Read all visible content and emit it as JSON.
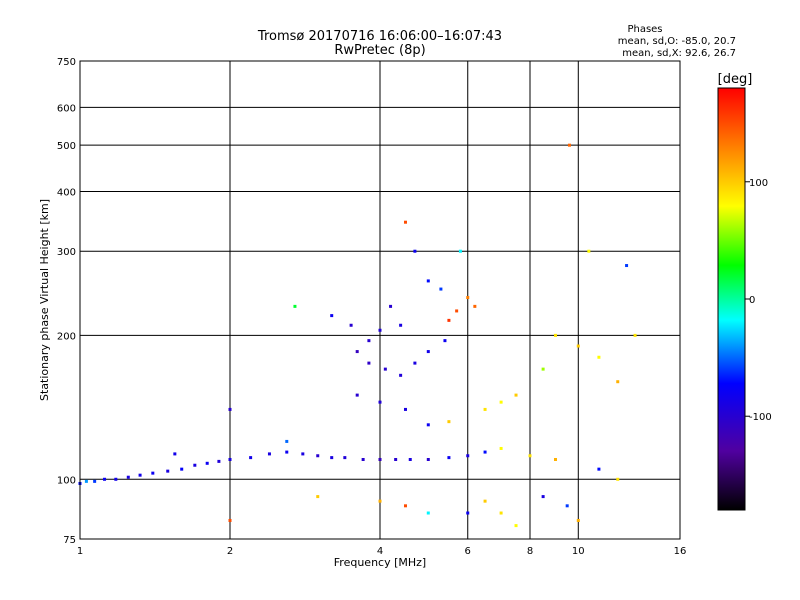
{
  "chart_data": {
    "type": "scatter",
    "title": "Tromsø 20170716 16:06:00–16:07:43",
    "subtitle": "RwPretec (8p)",
    "xlabel": "Frequency [MHz]",
    "ylabel": "Stationary phase Virtual Height [km]",
    "x_scale": "log",
    "y_scale": "log",
    "xlim": [
      1,
      16
    ],
    "ylim": [
      75,
      750
    ],
    "x_ticks": [
      "1",
      "2",
      "4",
      "6",
      "8",
      "10",
      "16"
    ],
    "y_ticks": [
      "75",
      "100",
      "200",
      "300",
      "400",
      "500",
      "600",
      "750"
    ],
    "grid": true,
    "phase_box": {
      "title": "Phases",
      "line_o": "mean, sd,O: -85.0, 20.7",
      "line_x": "mean, sd,X: 92.6, 26.7"
    },
    "colorbar": {
      "label": "[deg]",
      "ticks": [
        "100",
        "0",
        "-100"
      ],
      "range": [
        -180,
        180
      ],
      "colormap": "rainbow"
    },
    "series": [
      {
        "values": [
          {
            "x": 1.0,
            "y": 98,
            "phase": -70
          },
          {
            "x": 1.03,
            "y": 99,
            "phase": -40
          },
          {
            "x": 1.07,
            "y": 99,
            "phase": -60
          },
          {
            "x": 1.12,
            "y": 100,
            "phase": -80
          },
          {
            "x": 1.18,
            "y": 100,
            "phase": -85
          },
          {
            "x": 1.25,
            "y": 101,
            "phase": -90
          },
          {
            "x": 1.32,
            "y": 102,
            "phase": -85
          },
          {
            "x": 1.4,
            "y": 103,
            "phase": -80
          },
          {
            "x": 1.5,
            "y": 104,
            "phase": -90
          },
          {
            "x": 1.55,
            "y": 113,
            "phase": -85
          },
          {
            "x": 1.6,
            "y": 105,
            "phase": -75
          },
          {
            "x": 1.7,
            "y": 107,
            "phase": -90
          },
          {
            "x": 1.8,
            "y": 108,
            "phase": -80
          },
          {
            "x": 1.9,
            "y": 109,
            "phase": -95
          },
          {
            "x": 2.0,
            "y": 110,
            "phase": -90
          },
          {
            "x": 2.0,
            "y": 140,
            "phase": -100
          },
          {
            "x": 2.0,
            "y": 82,
            "phase": 150
          },
          {
            "x": 2.2,
            "y": 111,
            "phase": -85
          },
          {
            "x": 2.4,
            "y": 113,
            "phase": -90
          },
          {
            "x": 2.6,
            "y": 114,
            "phase": -80
          },
          {
            "x": 2.6,
            "y": 120,
            "phase": -50
          },
          {
            "x": 2.8,
            "y": 113,
            "phase": -90
          },
          {
            "x": 3.0,
            "y": 112,
            "phase": -100
          },
          {
            "x": 3.2,
            "y": 111,
            "phase": -90
          },
          {
            "x": 3.4,
            "y": 111,
            "phase": -95
          },
          {
            "x": 3.7,
            "y": 110,
            "phase": -100
          },
          {
            "x": 4.0,
            "y": 110,
            "phase": -110
          },
          {
            "x": 4.3,
            "y": 110,
            "phase": -100
          },
          {
            "x": 4.6,
            "y": 110,
            "phase": -90
          },
          {
            "x": 5.0,
            "y": 110,
            "phase": -100
          },
          {
            "x": 5.5,
            "y": 111,
            "phase": -80
          },
          {
            "x": 6.0,
            "y": 112,
            "phase": -90
          },
          {
            "x": 6.5,
            "y": 114,
            "phase": -70
          },
          {
            "x": 7.0,
            "y": 116,
            "phase": 80
          },
          {
            "x": 8.0,
            "y": 112,
            "phase": 90
          },
          {
            "x": 9.0,
            "y": 110,
            "phase": 110
          },
          {
            "x": 9.6,
            "y": 500,
            "phase": 140
          },
          {
            "x": 2.7,
            "y": 230,
            "phase": 20
          },
          {
            "x": 3.2,
            "y": 220,
            "phase": -80
          },
          {
            "x": 3.5,
            "y": 210,
            "phase": -100
          },
          {
            "x": 3.6,
            "y": 185,
            "phase": -110
          },
          {
            "x": 3.8,
            "y": 195,
            "phase": -100
          },
          {
            "x": 4.0,
            "y": 205,
            "phase": -95
          },
          {
            "x": 4.2,
            "y": 230,
            "phase": -100
          },
          {
            "x": 4.4,
            "y": 210,
            "phase": -90
          },
          {
            "x": 4.5,
            "y": 345,
            "phase": 150
          },
          {
            "x": 4.7,
            "y": 300,
            "phase": -80
          },
          {
            "x": 5.0,
            "y": 260,
            "phase": -70
          },
          {
            "x": 5.3,
            "y": 250,
            "phase": -60
          },
          {
            "x": 5.5,
            "y": 215,
            "phase": 160
          },
          {
            "x": 5.7,
            "y": 225,
            "phase": 150
          },
          {
            "x": 5.8,
            "y": 300,
            "phase": -20
          },
          {
            "x": 6.0,
            "y": 240,
            "phase": 130
          },
          {
            "x": 6.2,
            "y": 230,
            "phase": 140
          },
          {
            "x": 3.8,
            "y": 175,
            "phase": -105
          },
          {
            "x": 4.1,
            "y": 170,
            "phase": -100
          },
          {
            "x": 4.4,
            "y": 165,
            "phase": -95
          },
          {
            "x": 4.7,
            "y": 175,
            "phase": -90
          },
          {
            "x": 5.0,
            "y": 185,
            "phase": -85
          },
          {
            "x": 5.4,
            "y": 195,
            "phase": -80
          },
          {
            "x": 3.6,
            "y": 150,
            "phase": -100
          },
          {
            "x": 4.0,
            "y": 145,
            "phase": -95
          },
          {
            "x": 4.5,
            "y": 140,
            "phase": -90
          },
          {
            "x": 5.0,
            "y": 130,
            "phase": -80
          },
          {
            "x": 5.5,
            "y": 132,
            "phase": 100
          },
          {
            "x": 6.5,
            "y": 140,
            "phase": 90
          },
          {
            "x": 7.0,
            "y": 145,
            "phase": 80
          },
          {
            "x": 7.5,
            "y": 150,
            "phase": 100
          },
          {
            "x": 8.5,
            "y": 170,
            "phase": 60
          },
          {
            "x": 9.0,
            "y": 200,
            "phase": 90
          },
          {
            "x": 10.0,
            "y": 190,
            "phase": 100
          },
          {
            "x": 11.0,
            "y": 180,
            "phase": 80
          },
          {
            "x": 12.0,
            "y": 160,
            "phase": 110
          },
          {
            "x": 13.0,
            "y": 200,
            "phase": 90
          },
          {
            "x": 10.5,
            "y": 300,
            "phase": 80
          },
          {
            "x": 12.5,
            "y": 280,
            "phase": -60
          },
          {
            "x": 11.0,
            "y": 105,
            "phase": -70
          },
          {
            "x": 12.0,
            "y": 100,
            "phase": 90
          },
          {
            "x": 3.0,
            "y": 92,
            "phase": 100
          },
          {
            "x": 4.0,
            "y": 90,
            "phase": 110
          },
          {
            "x": 4.5,
            "y": 88,
            "phase": 150
          },
          {
            "x": 5.0,
            "y": 85,
            "phase": -20
          },
          {
            "x": 6.0,
            "y": 85,
            "phase": -80
          },
          {
            "x": 6.5,
            "y": 90,
            "phase": 100
          },
          {
            "x": 7.0,
            "y": 85,
            "phase": 90
          },
          {
            "x": 7.5,
            "y": 80,
            "phase": 80
          },
          {
            "x": 8.5,
            "y": 92,
            "phase": -90
          },
          {
            "x": 9.5,
            "y": 88,
            "phase": -60
          },
          {
            "x": 10.0,
            "y": 82,
            "phase": 110
          }
        ]
      }
    ]
  }
}
